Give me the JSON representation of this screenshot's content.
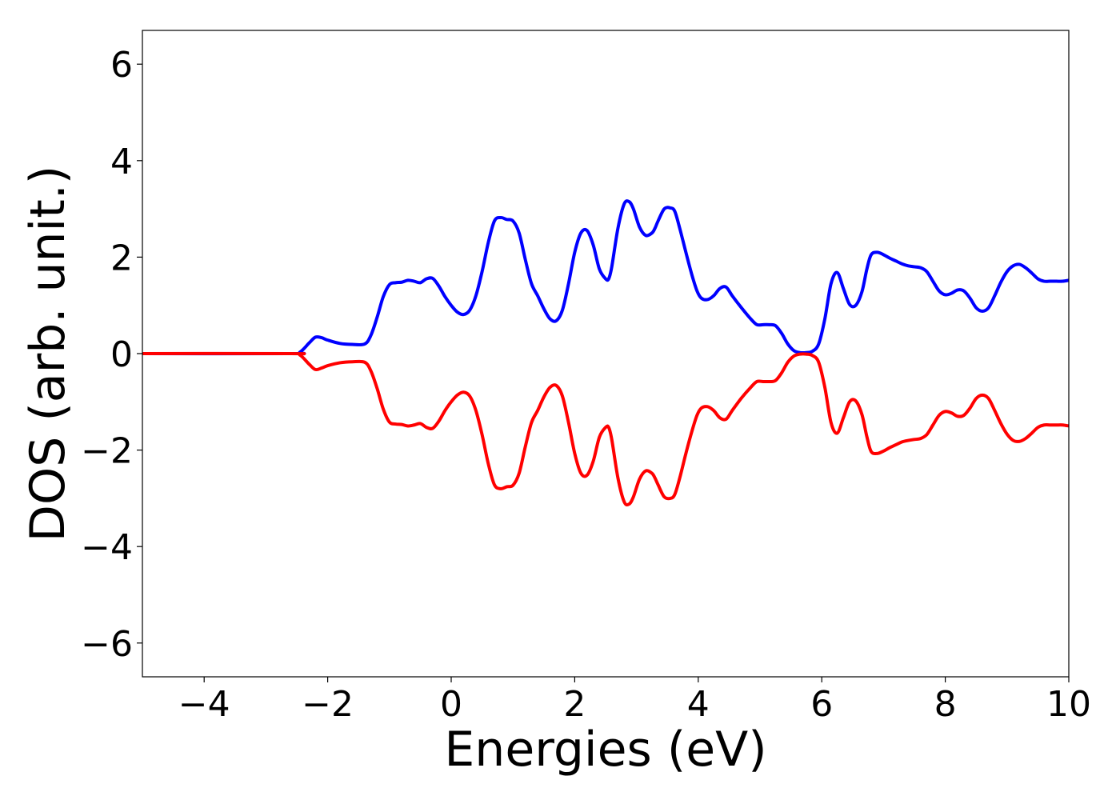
{
  "chart_data": {
    "type": "line",
    "title": "",
    "xlabel": "Energies (eV)",
    "ylabel": "DOS (arb. unit.)",
    "xlim": [
      -5,
      10
    ],
    "ylim": [
      -6.7,
      6.7
    ],
    "xticks": [
      -4,
      -2,
      0,
      2,
      4,
      6,
      8,
      10
    ],
    "yticks": [
      -6,
      -4,
      -2,
      0,
      2,
      4,
      6
    ],
    "xtick_labels": [
      "−4",
      "−2",
      "0",
      "2",
      "4",
      "6",
      "8",
      "10"
    ],
    "ytick_labels": [
      "−6",
      "−4",
      "−2",
      "0",
      "2",
      "4",
      "6"
    ],
    "grid": false,
    "legend": "none",
    "series": [
      {
        "color": "#0000ff",
        "x": [
          -5.0,
          -2.6,
          -2.45,
          -2.3,
          -2.2,
          -2.1,
          -2.0,
          -1.8,
          -1.6,
          -1.4,
          -1.3,
          -1.2,
          -1.1,
          -1.0,
          -0.9,
          -0.8,
          -0.7,
          -0.6,
          -0.5,
          -0.4,
          -0.3,
          -0.2,
          -0.1,
          0.0,
          0.1,
          0.2,
          0.3,
          0.4,
          0.5,
          0.6,
          0.7,
          0.8,
          0.9,
          1.0,
          1.1,
          1.2,
          1.3,
          1.4,
          1.5,
          1.6,
          1.7,
          1.8,
          1.9,
          2.0,
          2.1,
          2.2,
          2.3,
          2.4,
          2.5,
          2.55,
          2.6,
          2.7,
          2.8,
          2.88,
          2.95,
          3.05,
          3.15,
          3.25,
          3.3,
          3.35,
          3.45,
          3.55,
          3.62,
          3.7,
          3.8,
          3.9,
          3.98,
          4.05,
          4.15,
          4.25,
          4.35,
          4.45,
          4.55,
          4.7,
          4.85,
          4.95,
          5.05,
          5.15,
          5.25,
          5.35,
          5.45,
          5.55,
          5.65,
          5.75,
          5.85,
          5.95,
          6.05,
          6.15,
          6.25,
          6.35,
          6.45,
          6.55,
          6.65,
          6.73,
          6.8,
          6.9,
          7.0,
          7.1,
          7.2,
          7.3,
          7.4,
          7.5,
          7.6,
          7.7,
          7.8,
          7.9,
          8.0,
          8.1,
          8.2,
          8.3,
          8.4,
          8.5,
          8.6,
          8.7,
          8.8,
          8.9,
          9.0,
          9.1,
          9.2,
          9.3,
          9.4,
          9.5,
          9.6,
          9.7,
          9.8,
          9.9,
          10.0
        ],
        "y": [
          0.0,
          0.0,
          0.03,
          0.22,
          0.34,
          0.33,
          0.28,
          0.21,
          0.19,
          0.2,
          0.38,
          0.75,
          1.18,
          1.43,
          1.47,
          1.48,
          1.52,
          1.5,
          1.47,
          1.55,
          1.56,
          1.4,
          1.18,
          1.0,
          0.86,
          0.81,
          0.9,
          1.2,
          1.7,
          2.3,
          2.75,
          2.82,
          2.78,
          2.75,
          2.5,
          1.95,
          1.45,
          1.2,
          0.93,
          0.72,
          0.68,
          0.9,
          1.45,
          2.1,
          2.5,
          2.55,
          2.25,
          1.75,
          1.55,
          1.55,
          1.8,
          2.6,
          3.1,
          3.15,
          3.0,
          2.62,
          2.45,
          2.5,
          2.6,
          2.75,
          3.0,
          3.02,
          2.95,
          2.6,
          2.1,
          1.62,
          1.3,
          1.15,
          1.12,
          1.2,
          1.35,
          1.38,
          1.2,
          0.95,
          0.72,
          0.6,
          0.6,
          0.6,
          0.58,
          0.42,
          0.2,
          0.06,
          0.02,
          0.02,
          0.05,
          0.2,
          0.72,
          1.45,
          1.68,
          1.35,
          1.02,
          1.0,
          1.28,
          1.75,
          2.05,
          2.1,
          2.05,
          1.98,
          1.92,
          1.86,
          1.82,
          1.8,
          1.78,
          1.7,
          1.5,
          1.3,
          1.22,
          1.25,
          1.32,
          1.3,
          1.15,
          0.95,
          0.88,
          0.95,
          1.2,
          1.48,
          1.7,
          1.82,
          1.85,
          1.78,
          1.67,
          1.55,
          1.5,
          1.5,
          1.5,
          1.5,
          1.52
        ]
      },
      {
        "color": "#ff0000",
        "x": [
          -5.0,
          -2.6,
          -2.45,
          -2.3,
          -2.2,
          -2.1,
          -2.0,
          -1.8,
          -1.6,
          -1.4,
          -1.3,
          -1.2,
          -1.1,
          -1.0,
          -0.9,
          -0.8,
          -0.7,
          -0.6,
          -0.5,
          -0.4,
          -0.3,
          -0.2,
          -0.1,
          0.0,
          0.1,
          0.2,
          0.3,
          0.4,
          0.5,
          0.6,
          0.7,
          0.8,
          0.9,
          1.0,
          1.1,
          1.2,
          1.3,
          1.4,
          1.5,
          1.6,
          1.7,
          1.8,
          1.9,
          2.0,
          2.1,
          2.2,
          2.3,
          2.4,
          2.5,
          2.55,
          2.6,
          2.7,
          2.8,
          2.88,
          2.95,
          3.05,
          3.15,
          3.25,
          3.3,
          3.35,
          3.45,
          3.55,
          3.62,
          3.7,
          3.8,
          3.9,
          3.98,
          4.05,
          4.15,
          4.25,
          4.35,
          4.45,
          4.55,
          4.7,
          4.85,
          4.95,
          5.05,
          5.15,
          5.25,
          5.35,
          5.45,
          5.55,
          5.65,
          5.75,
          5.85,
          5.95,
          6.05,
          6.15,
          6.25,
          6.35,
          6.45,
          6.55,
          6.65,
          6.73,
          6.8,
          6.9,
          7.0,
          7.1,
          7.2,
          7.3,
          7.4,
          7.5,
          7.6,
          7.7,
          7.8,
          7.9,
          8.0,
          8.1,
          8.2,
          8.3,
          8.4,
          8.5,
          8.6,
          8.7,
          8.8,
          8.9,
          9.0,
          9.1,
          9.2,
          9.3,
          9.4,
          9.5,
          9.6,
          9.7,
          9.8,
          9.9,
          10.0
        ],
        "y": [
          0.0,
          0.0,
          -0.03,
          -0.22,
          -0.33,
          -0.3,
          -0.25,
          -0.19,
          -0.17,
          -0.18,
          -0.36,
          -0.72,
          -1.15,
          -1.42,
          -1.46,
          -1.47,
          -1.5,
          -1.48,
          -1.45,
          -1.53,
          -1.55,
          -1.4,
          -1.18,
          -1.0,
          -0.86,
          -0.8,
          -0.88,
          -1.18,
          -1.68,
          -2.28,
          -2.72,
          -2.8,
          -2.76,
          -2.73,
          -2.48,
          -1.93,
          -1.43,
          -1.18,
          -0.9,
          -0.7,
          -0.66,
          -0.88,
          -1.43,
          -2.07,
          -2.48,
          -2.52,
          -2.23,
          -1.73,
          -1.53,
          -1.53,
          -1.78,
          -2.58,
          -3.07,
          -3.12,
          -2.97,
          -2.6,
          -2.43,
          -2.48,
          -2.58,
          -2.72,
          -2.97,
          -3.0,
          -2.92,
          -2.58,
          -2.07,
          -1.6,
          -1.28,
          -1.13,
          -1.1,
          -1.18,
          -1.33,
          -1.36,
          -1.18,
          -0.92,
          -0.7,
          -0.58,
          -0.58,
          -0.58,
          -0.56,
          -0.4,
          -0.18,
          -0.05,
          -0.01,
          -0.01,
          -0.04,
          -0.18,
          -0.7,
          -1.43,
          -1.65,
          -1.33,
          -1.0,
          -0.98,
          -1.26,
          -1.72,
          -2.03,
          -2.07,
          -2.02,
          -1.95,
          -1.89,
          -1.83,
          -1.8,
          -1.78,
          -1.76,
          -1.68,
          -1.48,
          -1.28,
          -1.2,
          -1.23,
          -1.3,
          -1.28,
          -1.13,
          -0.93,
          -0.86,
          -0.93,
          -1.18,
          -1.45,
          -1.67,
          -1.8,
          -1.82,
          -1.76,
          -1.65,
          -1.53,
          -1.48,
          -1.48,
          -1.48,
          -1.48,
          -1.5
        ]
      }
    ]
  }
}
